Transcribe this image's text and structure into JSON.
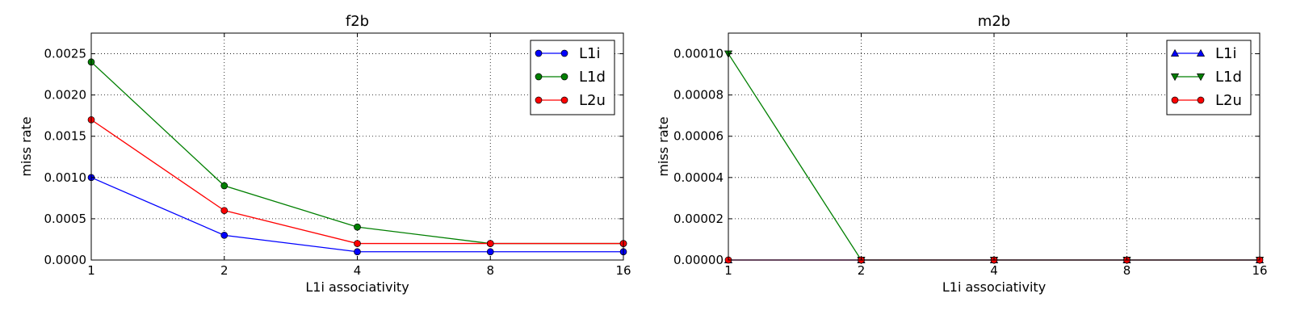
{
  "chart_data": [
    {
      "type": "line",
      "title": "f2b",
      "xlabel": "L1i associativity",
      "ylabel": "miss rate",
      "x": [
        1,
        2,
        4,
        8,
        16
      ],
      "x_scale": "log2",
      "xticks": [
        "1",
        "2",
        "4",
        "8",
        "16"
      ],
      "ylim": [
        0,
        0.00275
      ],
      "yticks": [
        "0.0000",
        "0.0005",
        "0.0010",
        "0.0015",
        "0.0020",
        "0.0025"
      ],
      "grid": true,
      "legend_position": "top-right",
      "series": [
        {
          "name": "L1i",
          "values": [
            0.001,
            0.0003,
            0.0001,
            0.0001,
            0.0001
          ],
          "color": "#0000ff",
          "marker": "circle"
        },
        {
          "name": "L1d",
          "values": [
            0.0024,
            0.0009,
            0.0004,
            0.0002,
            0.0002
          ],
          "color": "#007f00",
          "marker": "circle"
        },
        {
          "name": "L2u",
          "values": [
            0.0017,
            0.0006,
            0.0002,
            0.0002,
            0.0002
          ],
          "color": "#ff0000",
          "marker": "circle"
        }
      ]
    },
    {
      "type": "line",
      "title": "m2b",
      "xlabel": "L1i associativity",
      "ylabel": "miss rate",
      "x": [
        1,
        2,
        4,
        8,
        16
      ],
      "x_scale": "log2",
      "xticks": [
        "1",
        "2",
        "4",
        "8",
        "16"
      ],
      "ylim": [
        0,
        0.00011
      ],
      "yticks": [
        "0.00000",
        "0.00002",
        "0.00004",
        "0.00006",
        "0.00008",
        "0.00010"
      ],
      "grid": true,
      "legend_position": "top-right",
      "series": [
        {
          "name": "L1i",
          "values": [
            0,
            0,
            0,
            0,
            0
          ],
          "color": "#0000ff",
          "marker": "triangle-up"
        },
        {
          "name": "L1d",
          "values": [
            0.0001,
            0,
            0,
            0,
            0
          ],
          "color": "#007f00",
          "marker": "triangle-down"
        },
        {
          "name": "L2u",
          "values": [
            0,
            0,
            0,
            0,
            0
          ],
          "color": "#ff0000",
          "marker": "circle"
        }
      ]
    }
  ]
}
